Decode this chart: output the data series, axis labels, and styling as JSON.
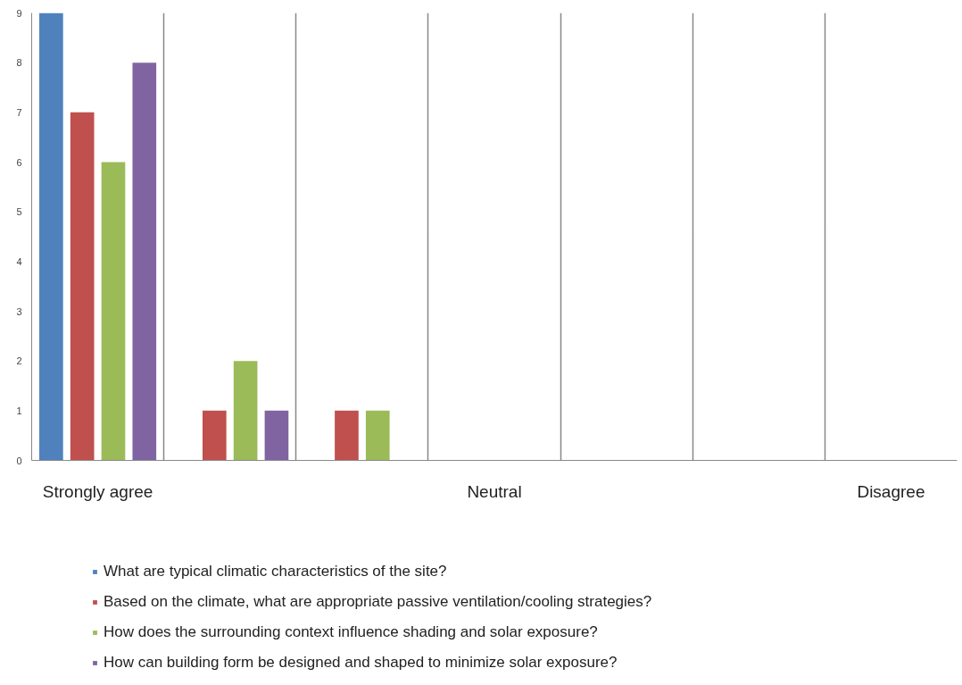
{
  "chart_data": {
    "type": "bar",
    "categories": [
      "Strongly agree",
      null,
      null,
      "Neutral",
      null,
      null,
      "Disagree"
    ],
    "series": [
      {
        "name": "What are typical climatic characteristics of the site?",
        "color": "#4f81bd",
        "values": [
          9,
          0,
          0,
          0,
          0,
          0,
          0
        ]
      },
      {
        "name": "Based on the climate, what are appropriate passive ventilation/cooling strategies?",
        "color": "#c0504d",
        "values": [
          7,
          1,
          1,
          0,
          0,
          0,
          0
        ]
      },
      {
        "name": "How does the surrounding context influence shading and solar exposure?",
        "color": "#9bbb59",
        "values": [
          6,
          2,
          1,
          0,
          0,
          0,
          0
        ]
      },
      {
        "name": "How can building form be designed and shaped to minimize solar exposure?",
        "color": "#8064a2",
        "values": [
          8,
          1,
          0,
          0,
          0,
          0,
          0
        ]
      }
    ],
    "ylim": [
      0,
      9
    ],
    "yticks": [
      0,
      1,
      2,
      3,
      4,
      5,
      6,
      7,
      8,
      9
    ],
    "grid": "x",
    "legend": "bottom"
  }
}
